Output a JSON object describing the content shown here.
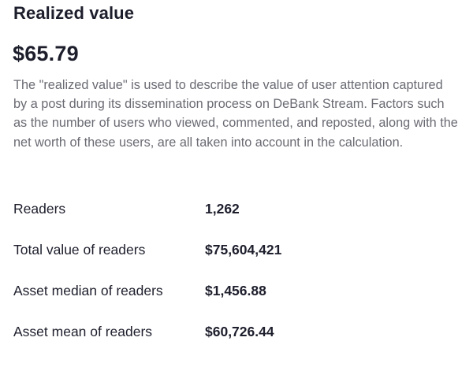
{
  "realized_value": {
    "title": "Realized value",
    "amount": "$65.79",
    "description": "The \"realized value\" is used to describe the value of user attention captured by a post during its dissemination process on DeBank Stream. Factors such as the number of users who viewed, commented, and reposted, along with the net worth of these users, are all taken into account in the calculation."
  },
  "stats": [
    {
      "label": "Readers",
      "value": "1,262"
    },
    {
      "label": "Total value of readers",
      "value": "$75,604,421"
    },
    {
      "label": "Asset median of readers",
      "value": "$1,456.88"
    },
    {
      "label": "Asset mean of readers",
      "value": "$60,726.44"
    }
  ],
  "colors": {
    "text_primary": "#1d1e2c",
    "text_secondary": "#6a6b73",
    "background": "#ffffff"
  }
}
